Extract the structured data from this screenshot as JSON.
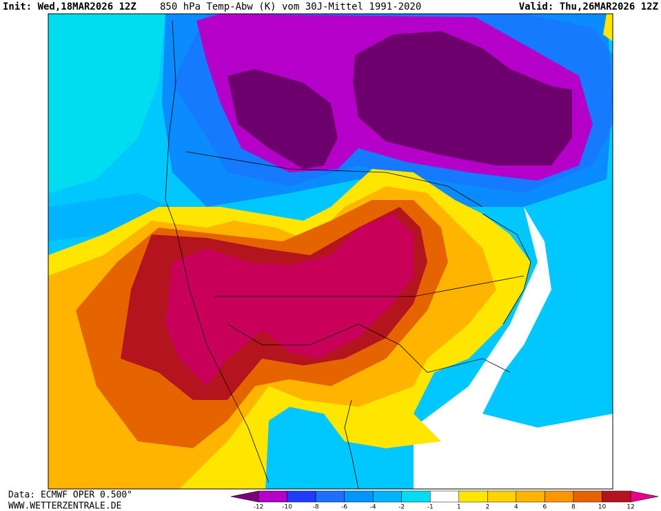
{
  "header": {
    "init": "Init: Wed,18MAR2026 12Z",
    "title": "850 hPa Temp-Abw (K) vom 30J-Mittel 1991-2020",
    "valid": "Valid: Thu,26MAR2026 12Z"
  },
  "footer": {
    "source": "Data: ECMWF OPER 0.500°",
    "url": "WWW.WETTERZENTRALE.DE"
  },
  "legend": {
    "ticks": [
      -12,
      -10,
      -8,
      -6,
      -4,
      -2,
      -1,
      1,
      2,
      4,
      6,
      8,
      10,
      12
    ],
    "colors": [
      "#7a007a",
      "#b400c8",
      "#1e3cff",
      "#1e6eff",
      "#0096ff",
      "#00b4ff",
      "#00dcf0",
      "#ffffff",
      "#ffe600",
      "#ffd200",
      "#ffb400",
      "#ff9600",
      "#e66400",
      "#b4141e",
      "#e6008c"
    ]
  }
}
